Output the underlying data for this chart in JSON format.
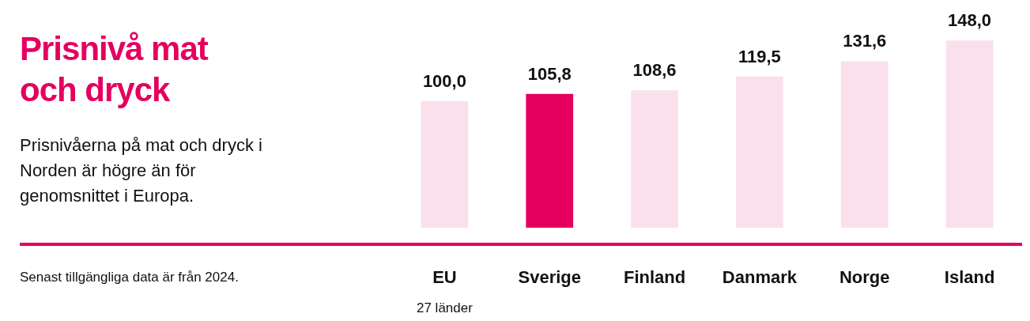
{
  "chart_data": {
    "type": "bar",
    "title": "Prisnivå mat och dryck",
    "subtitle": "Prisnivåerna på mat och dryck i Norden är högre än för genomsnittet i Europa.",
    "categories": [
      "EU\n27 länder",
      "Sverige",
      "Finland",
      "Danmark",
      "Norge",
      "Island"
    ],
    "values": [
      100.0,
      105.8,
      108.6,
      119.5,
      131.6,
      148.0
    ],
    "value_labels": [
      "100,0",
      "105,8",
      "108,6",
      "119,5",
      "131,6",
      "148,0"
    ],
    "colors": [
      "#fae0ec",
      "#e5005f",
      "#fae0ec",
      "#fae0ec",
      "#fae0ec",
      "#fae0ec"
    ],
    "annotations": [
      "Senast tillgängliga data är från 2024."
    ],
    "grid": false,
    "legend": false
  }
}
